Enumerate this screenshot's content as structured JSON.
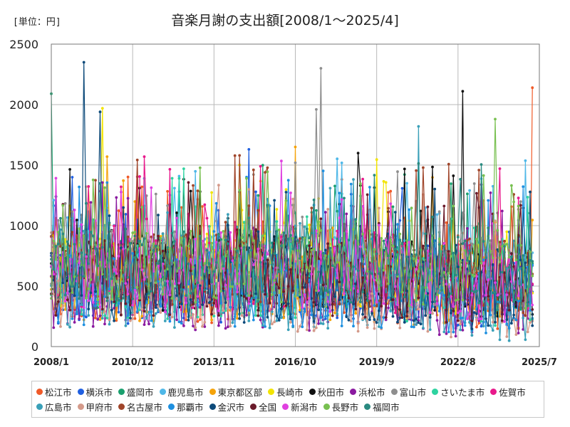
{
  "header": {
    "unit_label": "[単位：円]",
    "title": "音楽月謝の支出額[2008/1～2025/4]"
  },
  "chart_data": {
    "type": "line",
    "title": "音楽月謝の支出額[2008/1～2025/4]",
    "xlabel": "",
    "ylabel": "[単位：円]",
    "ylim": [
      0,
      2500
    ],
    "yticks": [
      0,
      500,
      1000,
      1500,
      2000,
      2500
    ],
    "xlim": [
      "2008/1",
      "2025/7"
    ],
    "xticks": [
      "2008/1",
      "2010/12",
      "2013/11",
      "2016/10",
      "2019/9",
      "2022/8",
      "2025/7"
    ],
    "grid": true,
    "legend_position": "bottom",
    "series": [
      {
        "name": "松江市",
        "color": "#f05a28",
        "notable_points": [
          {
            "x": "2025/4",
            "y": 2140
          }
        ]
      },
      {
        "name": "横浜市",
        "color": "#1f5fe0",
        "notable_points": [
          {
            "x": "2008/10",
            "y": 1400
          },
          {
            "x": "2015/2",
            "y": 1630
          }
        ]
      },
      {
        "name": "盛岡市",
        "color": "#1aa06e",
        "notable_points": [
          {
            "x": "2008/1",
            "y": 2090
          }
        ]
      },
      {
        "name": "鹿児島市",
        "color": "#4fb8e8",
        "notable_points": []
      },
      {
        "name": "東京都区部",
        "color": "#f5a30a",
        "notable_points": [
          {
            "x": "2010/1",
            "y": 1570
          },
          {
            "x": "2016/10",
            "y": 1650
          }
        ]
      },
      {
        "name": "長崎市",
        "color": "#f2e400",
        "notable_points": [
          {
            "x": "2009/11",
            "y": 1970
          }
        ]
      },
      {
        "name": "秋田市",
        "color": "#111111",
        "notable_points": [
          {
            "x": "2022/10",
            "y": 2110
          }
        ]
      },
      {
        "name": "浜松市",
        "color": "#8b1aa0",
        "notable_points": []
      },
      {
        "name": "富山市",
        "color": "#8e8e8e",
        "notable_points": [
          {
            "x": "2017/9",
            "y": 2300
          },
          {
            "x": "2017/7",
            "y": 1960
          }
        ]
      },
      {
        "name": "さいたま市",
        "color": "#2ed3a0",
        "notable_points": []
      },
      {
        "name": "佐賀市",
        "color": "#e8198b",
        "notable_points": [
          {
            "x": "2011/5",
            "y": 1570
          }
        ]
      },
      {
        "name": "広島市",
        "color": "#3aa0b8",
        "notable_points": [
          {
            "x": "2021/3",
            "y": 1820
          }
        ]
      },
      {
        "name": "甲府市",
        "color": "#d49a8a",
        "notable_points": []
      },
      {
        "name": "名古屋市",
        "color": "#a0452a",
        "notable_points": [
          {
            "x": "2014/10",
            "y": 1580
          }
        ]
      },
      {
        "name": "那覇市",
        "color": "#1e90e0",
        "notable_points": []
      },
      {
        "name": "金沢市",
        "color": "#0d4a7a",
        "notable_points": [
          {
            "x": "2009/3",
            "y": 2350
          },
          {
            "x": "2009/10",
            "y": 1940
          }
        ]
      },
      {
        "name": "全国",
        "color": "#6a1a2a",
        "notable_points": []
      },
      {
        "name": "新潟市",
        "color": "#e040e0",
        "notable_points": []
      },
      {
        "name": "長野市",
        "color": "#78c050",
        "notable_points": [
          {
            "x": "2023/12",
            "y": 1880
          }
        ]
      },
      {
        "name": "福岡市",
        "color": "#2a8a80",
        "notable_points": []
      }
    ]
  }
}
